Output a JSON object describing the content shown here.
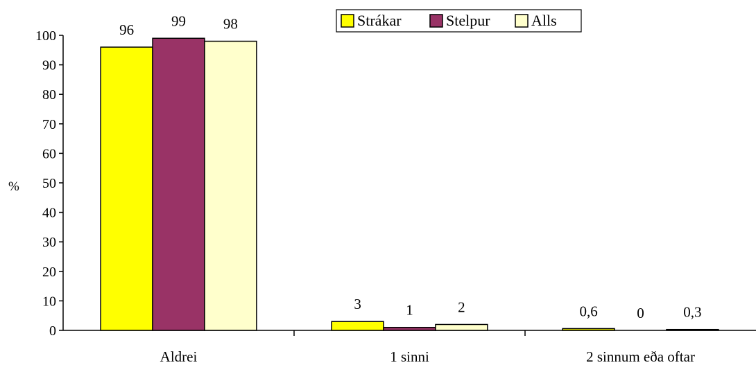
{
  "chart_data": {
    "type": "bar",
    "categories": [
      "Aldrei",
      "1 sinni",
      "2 sinnum eða oftar"
    ],
    "series": [
      {
        "name": "Strákar",
        "values": [
          96,
          3,
          0.6
        ],
        "labels": [
          "96",
          "3",
          "0,6"
        ]
      },
      {
        "name": "Stelpur",
        "values": [
          99,
          1,
          0
        ],
        "labels": [
          "99",
          "1",
          "0"
        ]
      },
      {
        "name": "Alls",
        "values": [
          98,
          2,
          0.3
        ],
        "labels": [
          "98",
          "2",
          "0,3"
        ]
      }
    ],
    "colors": [
      "#ffff00",
      "#993366",
      "#ffffcc"
    ],
    "title": "",
    "xlabel": "",
    "ylabel": "%",
    "ylim": [
      0,
      100
    ],
    "yticks": [
      0,
      10,
      20,
      30,
      40,
      50,
      60,
      70,
      80,
      90,
      100
    ],
    "grid": false,
    "legend_position": "top-center"
  }
}
